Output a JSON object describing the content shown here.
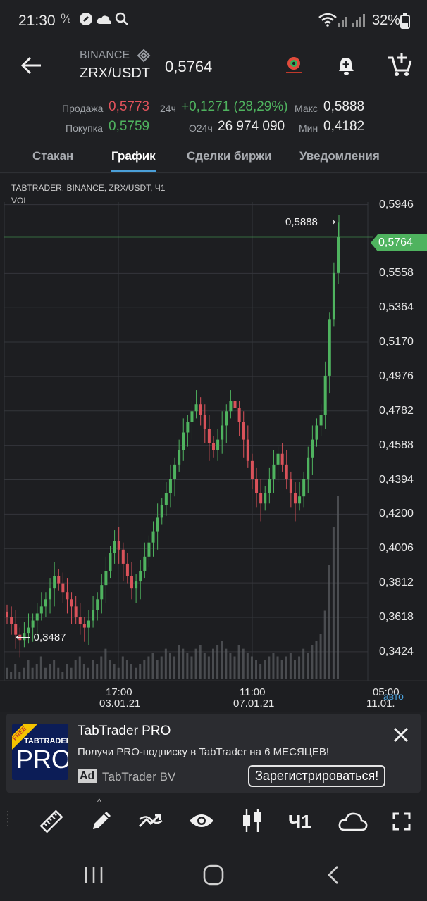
{
  "status_bar": {
    "time": "21:30",
    "battery": "32%"
  },
  "header": {
    "exchange": "BINANCE",
    "pair": "ZRX/USDT",
    "price": "0,5764"
  },
  "stats": {
    "sell_label": "Продажа",
    "sell_value": "0,5773",
    "buy_label": "Покупка",
    "buy_value": "0,5759",
    "change_label": "24ч",
    "change_value": "+0,1271 (28,29%)",
    "volume_label": "О24ч",
    "volume_value": "26 974 090",
    "max_label": "Макс",
    "max_value": "0,5888",
    "min_label": "Мин",
    "min_value": "0,4182"
  },
  "tabs": [
    "Стакан",
    "График",
    "Сделки биржи",
    "Уведомления"
  ],
  "chart": {
    "info_line1": "TABTRADER: BINANCE, ZRX/USDT, Ч1",
    "info_line2": "VOL",
    "high_marker": "0,5888 ⟶",
    "low_marker": "⟵ 0,3487",
    "current_tag": "0,5764",
    "y_ticks": [
      "0,5946",
      "0,5764",
      "0,5558",
      "0,5364",
      "0,5170",
      "0,4976",
      "0,4782",
      "0,4588",
      "0,4394",
      "0,4200",
      "0,4006",
      "0,3812",
      "0,3618",
      "0,3424"
    ],
    "x_labels": [
      {
        "time": "17:00",
        "date": "03.01.21"
      },
      {
        "time": "11:00",
        "date": "07.01.21"
      },
      {
        "time": "05:00",
        "date": "11.01."
      }
    ],
    "auto_label": "авто",
    "up_color": "#4fb35f",
    "down_color": "#d9525a"
  },
  "chart_data": {
    "type": "candlestick",
    "title": "TABTRADER: BINANCE, ZRX/USDT, Ч1",
    "ylim": [
      0.334,
      0.6
    ],
    "close_path": [
      0.362,
      0.358,
      0.352,
      0.349,
      0.353,
      0.356,
      0.36,
      0.364,
      0.368,
      0.372,
      0.378,
      0.385,
      0.381,
      0.376,
      0.372,
      0.368,
      0.362,
      0.358,
      0.356,
      0.36,
      0.366,
      0.372,
      0.38,
      0.388,
      0.398,
      0.405,
      0.4,
      0.392,
      0.385,
      0.378,
      0.382,
      0.388,
      0.396,
      0.404,
      0.41,
      0.418,
      0.425,
      0.432,
      0.44,
      0.448,
      0.456,
      0.466,
      0.472,
      0.478,
      0.482,
      0.476,
      0.468,
      0.46,
      0.456,
      0.462,
      0.47,
      0.478,
      0.484,
      0.48,
      0.472,
      0.462,
      0.45,
      0.44,
      0.432,
      0.426,
      0.432,
      0.44,
      0.448,
      0.454,
      0.448,
      0.44,
      0.432,
      0.426,
      0.43,
      0.44,
      0.452,
      0.462,
      0.47,
      0.476,
      0.498,
      0.53,
      0.556,
      0.5764
    ],
    "volume_path": [
      3,
      2,
      4,
      2,
      3,
      5,
      3,
      4,
      6,
      3,
      4,
      5,
      3,
      2,
      4,
      3,
      5,
      6,
      4,
      3,
      5,
      4,
      6,
      8,
      5,
      4,
      3,
      6,
      5,
      4,
      3,
      4,
      5,
      6,
      7,
      5,
      6,
      8,
      7,
      6,
      9,
      8,
      7,
      6,
      8,
      9,
      7,
      6,
      8,
      9,
      10,
      8,
      7,
      6,
      9,
      8,
      7,
      6,
      5,
      4,
      5,
      6,
      7,
      6,
      5,
      6,
      7,
      5,
      6,
      8,
      7,
      9,
      10,
      12,
      18,
      30,
      40,
      48
    ]
  },
  "ad": {
    "badge": "FREE",
    "logo_top": "TABTRADER",
    "logo_main": "PRO",
    "title": "TabTrader PRO",
    "text": "Получи PRO-подписку в TabTrader на 6 МЕСЯЦЕВ!",
    "ad_tag": "Ad",
    "advertiser": "TabTrader BV",
    "cta": "Зарегистрироваться!"
  },
  "toolbar": {
    "interval": "Ч1"
  },
  "icons": [
    "back-arrow-icon",
    "binance-icon",
    "bell-plus-icon",
    "cart-plus-icon",
    "ruler-icon",
    "pencil-icon",
    "indicator-icon",
    "eye-icon",
    "candles-icon",
    "cloud-icon",
    "fullscreen-icon",
    "close-icon"
  ]
}
